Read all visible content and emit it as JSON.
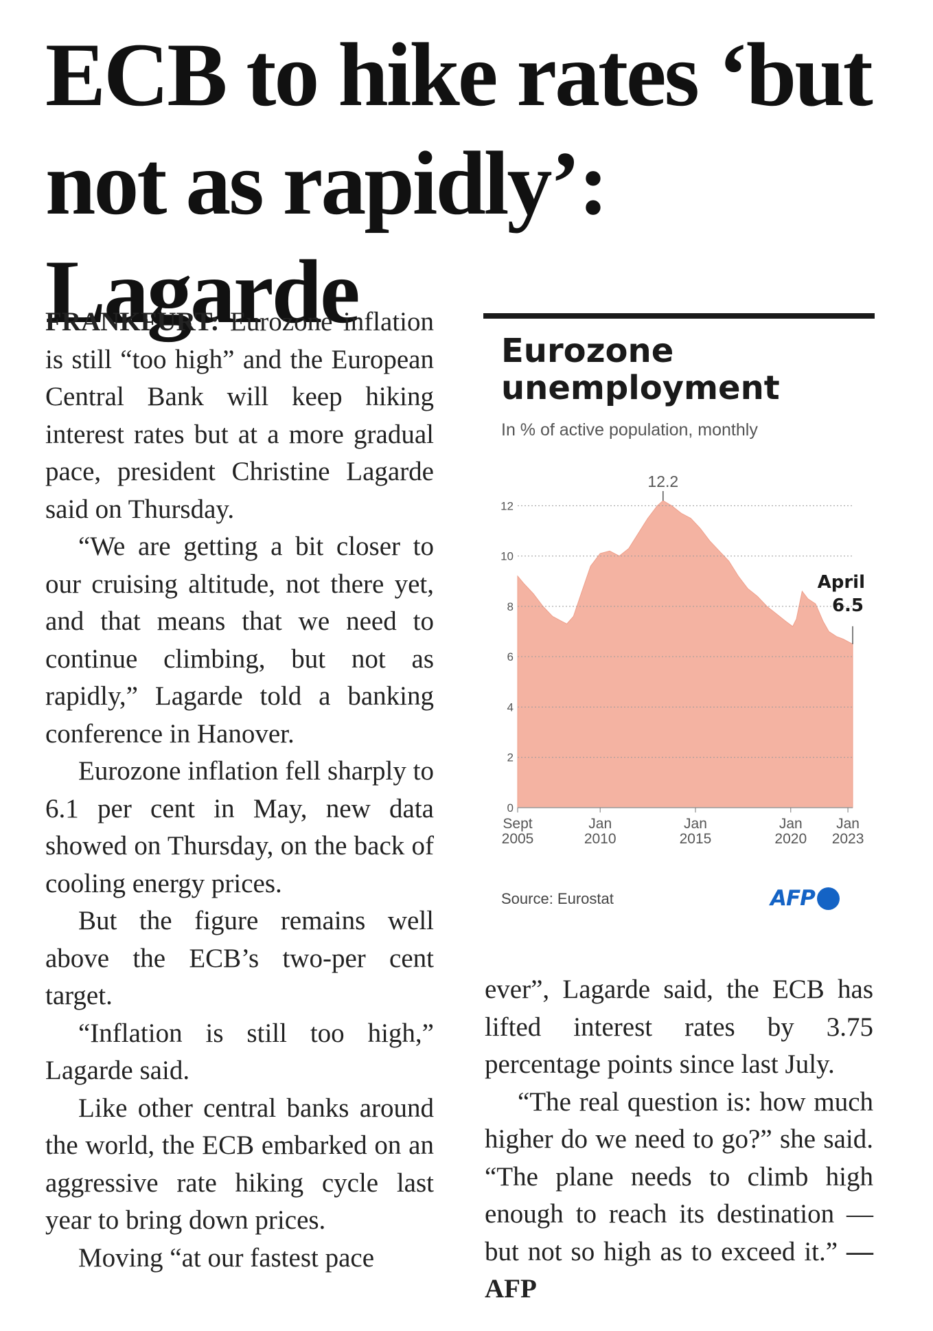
{
  "headline": "ECB to hike rates ‘but not as rapidly’: Lagarde",
  "article": {
    "dateline": "FRANKFURT:",
    "paragraphs": [
      "Eurozone inflation is still “too high” and the European Central Bank will keep hiking interest rates but at a more gradual pace, president Christine Lagarde said on Thursday.",
      "“We are getting a bit closer to our cruising altitude, not there yet, and that means that we need to continue climbing, but not as rapidly,” Lagarde told a banking conference in Hanover.",
      "Eurozone inflation fell sharply to 6.1 per cent in May, new data showed on Thursday, on the back of cooling energy prices.",
      "But the figure remains well above the ECB’s two-per cent target.",
      "“Inflation is still too high,” Lagarde said.",
      "Like other central banks around the world, the ECB embarked on an aggressive rate hiking cycle last year to bring down prices.",
      "Moving “at our fastest pace ever”, Lagarde said, the ECB has lifted interest rates by 3.75 percentage points since last July.",
      "“The real question is: how much higher do we need to go?” she said. “The plane needs to climb high enough to reach its destination — but not so high as to exceed it.”"
    ],
    "p7_left": "Moving “at our fastest pace",
    "p7_right": "ever”, Lagarde said, the ECB has lifted interest rates by 3.75 percentage points since last July.",
    "byline": "— AFP"
  },
  "chart": {
    "title_line1": "Eurozone",
    "title_line2": "unemployment",
    "subtitle": "In % of active population, monthly",
    "source": "Source: Eurostat",
    "credit": "AFP",
    "peak_label": "12.2",
    "end_label_line1": "April",
    "end_label_line2": "6.5",
    "fill_color": "#f4b3a2",
    "grid_color": "#9a9a9a",
    "afp_color": "#1463c5"
  },
  "chart_data": {
    "type": "area",
    "title": "Eurozone unemployment",
    "subtitle": "In % of active population, monthly",
    "ylim": [
      0,
      12.5
    ],
    "yticks": [
      0,
      2,
      4,
      6,
      8,
      10,
      12
    ],
    "grid": "horizontal dotted",
    "x_ticks": [
      {
        "line1": "Sept",
        "line2": "2005",
        "t": 2005.67
      },
      {
        "line1": "Jan",
        "line2": "2010",
        "t": 2010.0
      },
      {
        "line1": "Jan",
        "line2": "2015",
        "t": 2015.0
      },
      {
        "line1": "Jan",
        "line2": "2020",
        "t": 2020.0
      },
      {
        "line1": "Jan",
        "line2": "2023",
        "t": 2023.0
      }
    ],
    "x_range": [
      2005.67,
      2023.25
    ],
    "series": [
      {
        "values": [
          {
            "t": 2005.67,
            "y": 9.2
          },
          {
            "t": 2006.0,
            "y": 8.9
          },
          {
            "t": 2006.5,
            "y": 8.5
          },
          {
            "t": 2007.0,
            "y": 8.0
          },
          {
            "t": 2007.5,
            "y": 7.6
          },
          {
            "t": 2008.0,
            "y": 7.4
          },
          {
            "t": 2008.25,
            "y": 7.3
          },
          {
            "t": 2008.6,
            "y": 7.6
          },
          {
            "t": 2009.0,
            "y": 8.5
          },
          {
            "t": 2009.5,
            "y": 9.6
          },
          {
            "t": 2010.0,
            "y": 10.1
          },
          {
            "t": 2010.5,
            "y": 10.2
          },
          {
            "t": 2011.0,
            "y": 10.0
          },
          {
            "t": 2011.5,
            "y": 10.3
          },
          {
            "t": 2012.0,
            "y": 10.9
          },
          {
            "t": 2012.5,
            "y": 11.5
          },
          {
            "t": 2013.0,
            "y": 12.0
          },
          {
            "t": 2013.3,
            "y": 12.2
          },
          {
            "t": 2013.75,
            "y": 12.0
          },
          {
            "t": 2014.25,
            "y": 11.7
          },
          {
            "t": 2014.75,
            "y": 11.5
          },
          {
            "t": 2015.25,
            "y": 11.1
          },
          {
            "t": 2015.75,
            "y": 10.6
          },
          {
            "t": 2016.25,
            "y": 10.2
          },
          {
            "t": 2016.75,
            "y": 9.8
          },
          {
            "t": 2017.25,
            "y": 9.2
          },
          {
            "t": 2017.75,
            "y": 8.7
          },
          {
            "t": 2018.25,
            "y": 8.4
          },
          {
            "t": 2018.75,
            "y": 8.0
          },
          {
            "t": 2019.25,
            "y": 7.7
          },
          {
            "t": 2019.75,
            "y": 7.4
          },
          {
            "t": 2020.1,
            "y": 7.2
          },
          {
            "t": 2020.3,
            "y": 7.5
          },
          {
            "t": 2020.6,
            "y": 8.6
          },
          {
            "t": 2020.9,
            "y": 8.3
          },
          {
            "t": 2021.3,
            "y": 8.1
          },
          {
            "t": 2021.7,
            "y": 7.4
          },
          {
            "t": 2022.0,
            "y": 7.0
          },
          {
            "t": 2022.4,
            "y": 6.8
          },
          {
            "t": 2022.75,
            "y": 6.7
          },
          {
            "t": 2023.0,
            "y": 6.6
          },
          {
            "t": 2023.25,
            "y": 6.5
          }
        ]
      }
    ],
    "annotations": [
      {
        "label": "12.2",
        "t": 2013.3,
        "y": 12.2
      },
      {
        "label": "April 6.5",
        "t": 2023.25,
        "y": 6.5
      }
    ]
  }
}
